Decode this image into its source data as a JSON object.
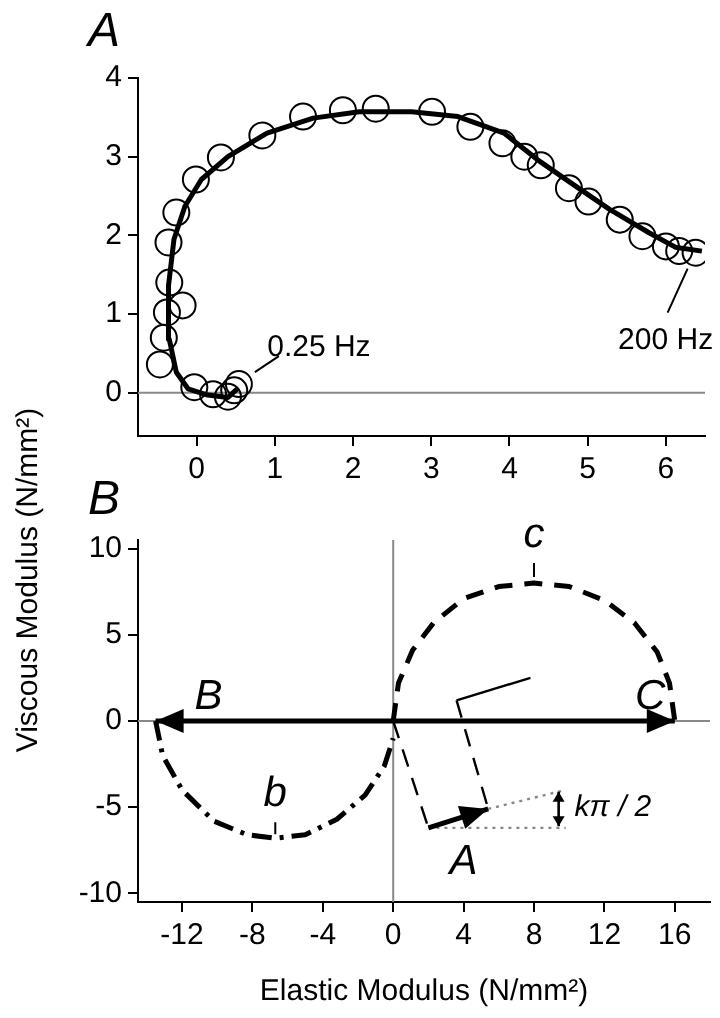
{
  "chart_data": [
    {
      "type": "scatter",
      "ylabel": "Viscous Modulus (N/mm²)",
      "annotations": [
        "A",
        {
          "text": "0.25 Hz",
          "x": 0.54,
          "y": 0.11
        },
        {
          "text": "200 Hz",
          "x": 6.38,
          "y": 1.78
        }
      ],
      "xlim": [
        -0.75,
        6.5
      ],
      "xticks": [
        0,
        1,
        2,
        3,
        4,
        5,
        6
      ],
      "ylim": [
        -0.55,
        4
      ],
      "yticks": [
        0,
        1,
        2,
        3,
        4
      ],
      "grid": false,
      "ref_lines": [
        {
          "axis": "y",
          "value": 0,
          "color": "#888888"
        }
      ],
      "series": [
        {
          "type": "scatter",
          "color": "#000000",
          "marker": "circle",
          "x": [
            -0.47,
            -0.42,
            -0.38,
            -0.18,
            -0.35,
            -0.36,
            -0.26,
            -0.01,
            0.31,
            0.84,
            1.36,
            1.87,
            2.29,
            3.01,
            3.5,
            3.91,
            4.19,
            4.4,
            4.76,
            5.01,
            5.41,
            5.7,
            6.0,
            6.17,
            6.38,
            -0.03,
            0.21,
            0.4,
            0.48,
            0.54
          ],
          "values": [
            0.36,
            0.7,
            1.02,
            1.11,
            1.4,
            1.91,
            2.29,
            2.71,
            2.99,
            3.27,
            3.51,
            3.59,
            3.61,
            3.57,
            3.38,
            3.17,
            3.0,
            2.89,
            2.6,
            2.43,
            2.2,
            1.99,
            1.86,
            1.8,
            1.78,
            0.07,
            -0.02,
            -0.05,
            0.03,
            0.11
          ]
        },
        {
          "type": "line",
          "color": "#000000",
          "x": [
            0.52,
            0.4,
            0.14,
            -0.11,
            -0.26,
            -0.35,
            -0.36,
            -0.29,
            -0.15,
            0.06,
            0.4,
            0.9,
            1.49,
            2.08,
            2.75,
            3.34,
            3.93,
            4.36,
            4.78,
            5.28,
            5.79,
            6.12,
            6.46
          ],
          "values": [
            0.05,
            -0.06,
            -0.03,
            0.05,
            0.26,
            0.68,
            1.36,
            1.95,
            2.37,
            2.71,
            3.0,
            3.3,
            3.49,
            3.57,
            3.57,
            3.51,
            3.3,
            2.96,
            2.67,
            2.33,
            2.03,
            1.85,
            1.8
          ]
        }
      ]
    },
    {
      "type": "line",
      "xlabel": "Elastic Modulus (N/mm²)",
      "annotations": [
        "B",
        {
          "text": "b",
          "x": -6.7,
          "y": -6.8
        },
        {
          "text": "c",
          "x": 8,
          "y": 8
        },
        "B",
        "C",
        "A",
        "kπ / 2"
      ],
      "xlim": [
        -14.5,
        18
      ],
      "xticks": [
        -12,
        -8,
        -4,
        0,
        4,
        8,
        12,
        16
      ],
      "ylim": [
        -10.5,
        10.5
      ],
      "yticks": [
        -10,
        -5,
        0,
        5,
        10
      ],
      "grid": false,
      "ref_lines": [
        {
          "axis": "y",
          "value": 0,
          "color": "#888888"
        },
        {
          "axis": "x",
          "value": 0,
          "color": "#888888"
        }
      ],
      "series": [
        {
          "color": "#000000",
          "line_style": "dashed",
          "x": [
            0,
            0.3,
            1.1,
            2.3,
            4,
            6,
            8,
            10,
            12,
            13.7,
            15,
            15.7,
            16
          ],
          "values": [
            0,
            2.2,
            4.1,
            5.7,
            7.1,
            7.8,
            8,
            7.8,
            7,
            5.7,
            4,
            2.2,
            0
          ]
        },
        {
          "color": "#000000",
          "line_style": "dashdot",
          "x": [
            -13.5,
            -13.1,
            -12,
            -10.2,
            -8.3,
            -6.7,
            -5,
            -3.2,
            -1.6,
            -0.5,
            0
          ],
          "values": [
            0,
            -2,
            -4,
            -5.8,
            -6.6,
            -6.8,
            -6.6,
            -5.7,
            -4.3,
            -2.6,
            -1
          ]
        },
        {
          "color": "#000000",
          "x": [
            3.6,
            7.8
          ],
          "values": [
            1.2,
            2.5
          ]
        },
        {
          "color": "#000000",
          "line_style": "dashed",
          "x": [
            0,
            2
          ],
          "values": [
            0,
            -6.2
          ]
        },
        {
          "color": "#000000",
          "line_style": "dashed",
          "x": [
            3.6,
            5.4
          ],
          "values": [
            1.2,
            -5.1
          ]
        },
        {
          "color": "#888888",
          "line_style": "dotted",
          "x": [
            2,
            9.8
          ],
          "values": [
            -6.2,
            -6.2
          ]
        },
        {
          "color": "#888888",
          "line_style": "dotted",
          "x": [
            5.4,
            9.8
          ],
          "values": [
            -5.1,
            -4
          ]
        }
      ]
    }
  ]
}
